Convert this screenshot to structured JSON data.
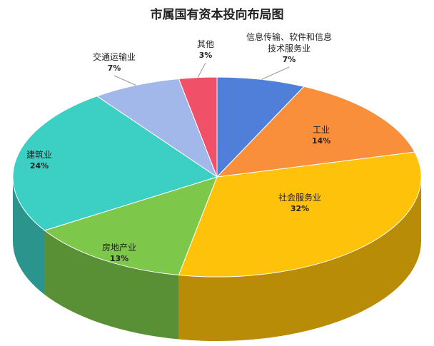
{
  "chart_data": {
    "type": "pie3d",
    "title": "市属国有资本投向布局图",
    "categories": [
      "信息传输、软件和信息技术服务业",
      "工业",
      "社会服务业",
      "房地产业",
      "建筑业",
      "交通运输业",
      "其他"
    ],
    "values": [
      7,
      14,
      32,
      13,
      24,
      7,
      3
    ],
    "value_labels": [
      "7%",
      "14%",
      "32%",
      "13%",
      "24%",
      "7%",
      "3%"
    ],
    "colors": [
      "#4f7fd9",
      "#f98f3a",
      "#ffc20a",
      "#7dc84a",
      "#3ccfc4",
      "#a3b8ea",
      "#f05068"
    ]
  }
}
